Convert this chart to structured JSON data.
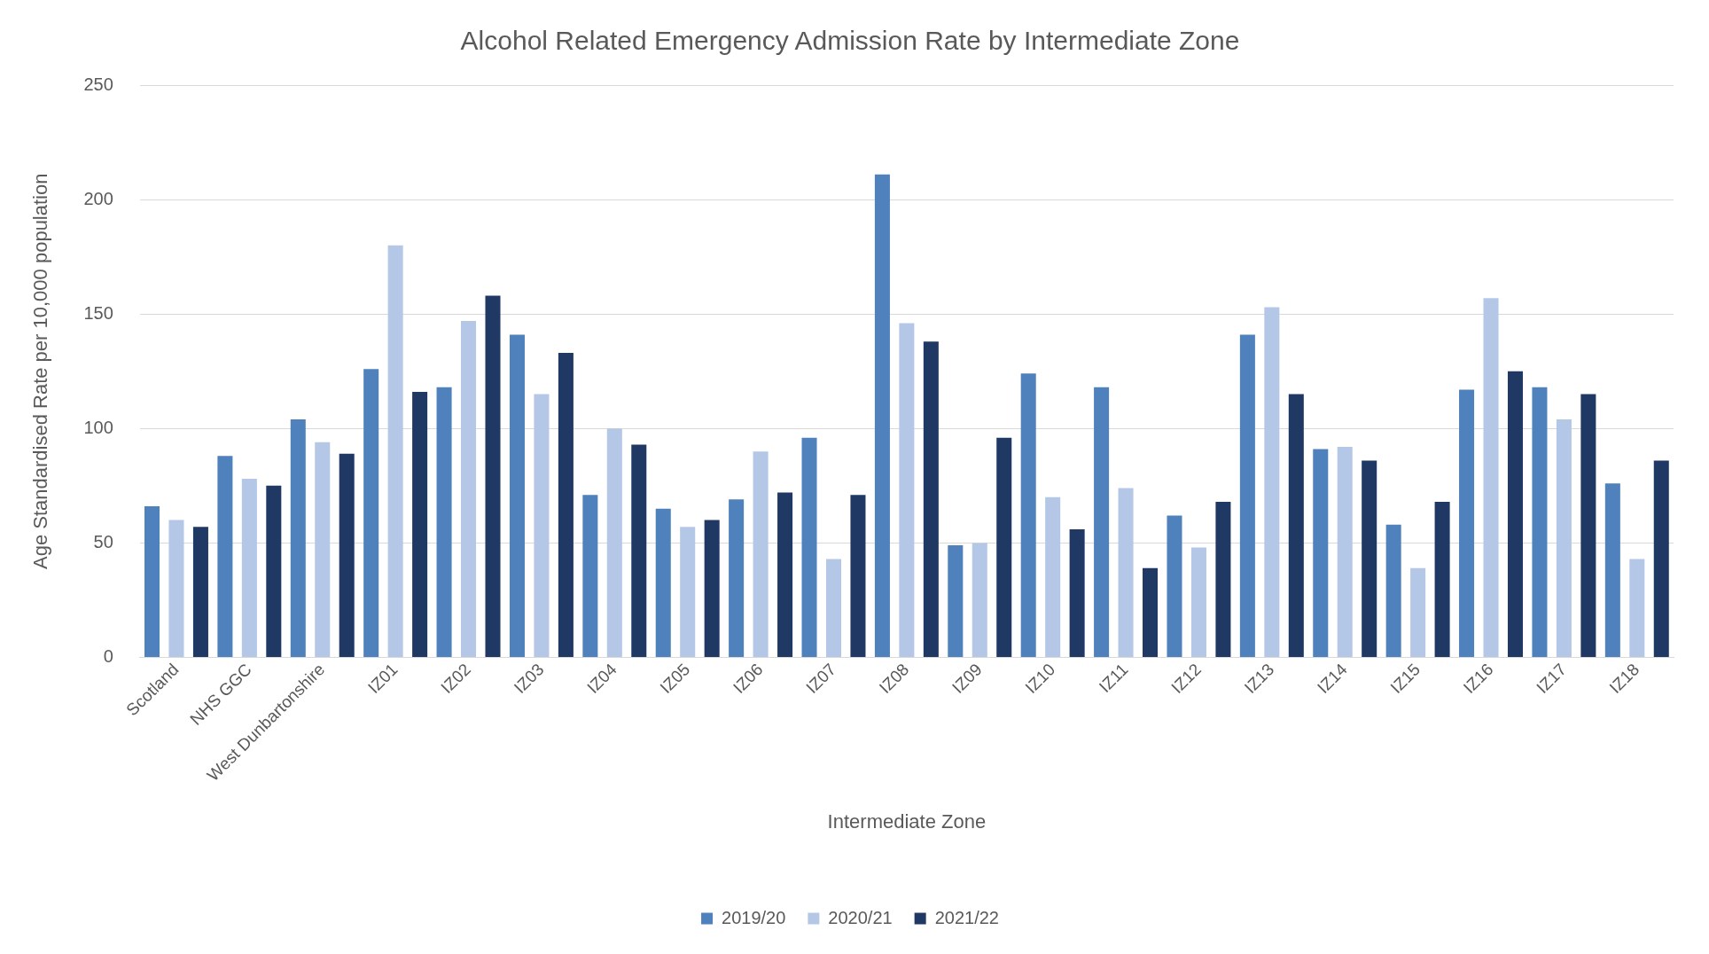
{
  "chart_data": {
    "type": "bar",
    "title": "Alcohol Related Emergency Admission Rate by Intermediate Zone",
    "xlabel": "Intermediate Zone",
    "ylabel": "Age Standardised Rate per 10,000 population",
    "categories": [
      "Scotland",
      "NHS GGC",
      "West Dunbartonshire",
      "IZ01",
      "IZ02",
      "IZ03",
      "IZ04",
      "IZ05",
      "IZ06",
      "IZ07",
      "IZ08",
      "IZ09",
      "IZ10",
      "IZ11",
      "IZ12",
      "IZ13",
      "IZ14",
      "IZ15",
      "IZ16",
      "IZ17",
      "IZ18"
    ],
    "series": [
      {
        "name": "2019/20",
        "color": "#4f81bd",
        "values": [
          66,
          88,
          104,
          126,
          118,
          141,
          71,
          65,
          69,
          96,
          211,
          49,
          124,
          118,
          62,
          141,
          91,
          58,
          117,
          118,
          76
        ]
      },
      {
        "name": "2020/21",
        "color": "#b4c7e7",
        "values": [
          60,
          78,
          94,
          180,
          147,
          115,
          100,
          57,
          90,
          43,
          146,
          50,
          70,
          74,
          48,
          153,
          92,
          39,
          157,
          104,
          43
        ]
      },
      {
        "name": "2021/22",
        "color": "#203864",
        "values": [
          57,
          75,
          89,
          116,
          158,
          133,
          93,
          60,
          72,
          71,
          138,
          96,
          56,
          39,
          68,
          115,
          86,
          68,
          125,
          115,
          86
        ]
      }
    ],
    "ylim": [
      0,
      250
    ],
    "yticks": [
      0,
      50,
      100,
      150,
      200,
      250
    ],
    "grid": "y",
    "legend": "bottom"
  }
}
